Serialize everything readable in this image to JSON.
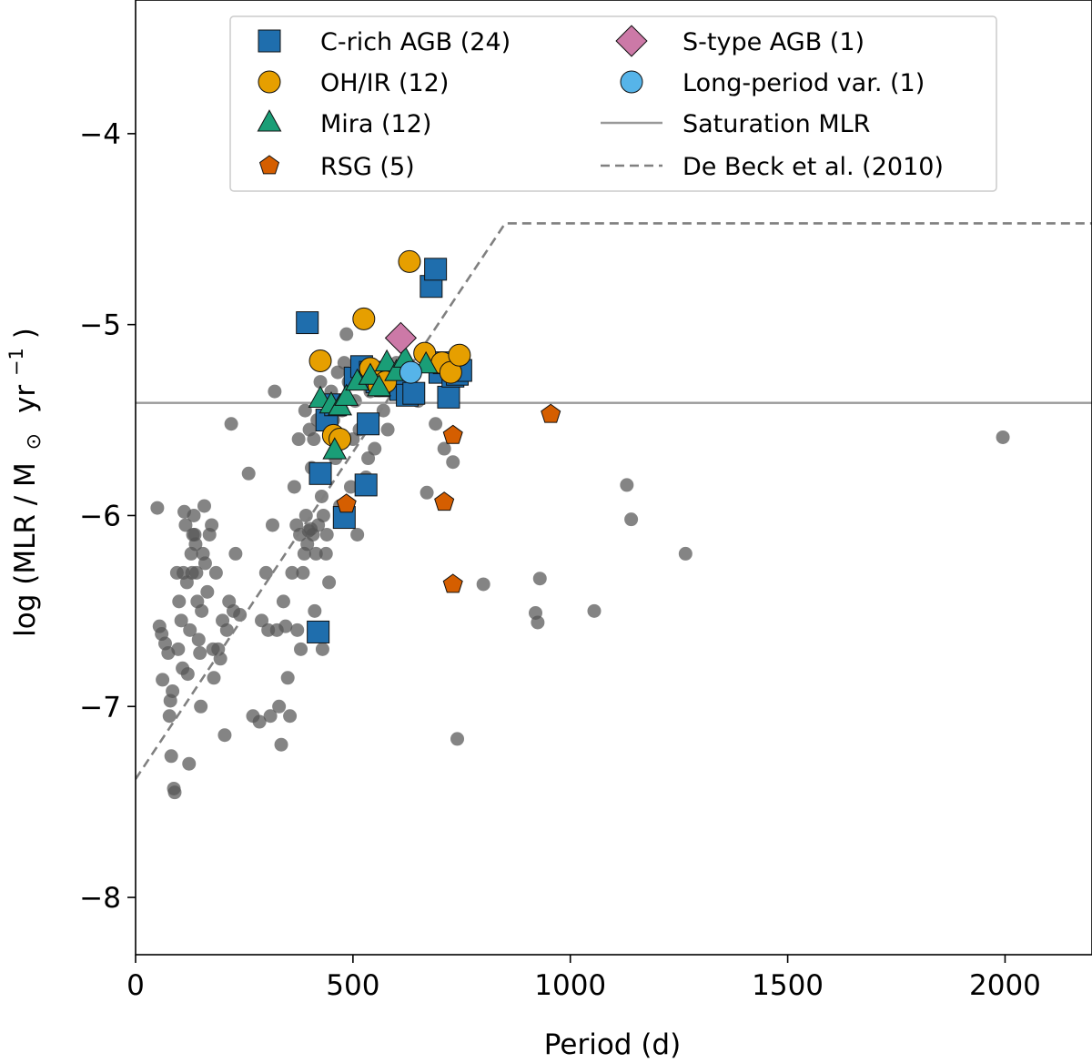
{
  "chart_data": {
    "type": "scatter",
    "title": "",
    "xlabel": "Period (d)",
    "ylabel_main": "log (MLR / M",
    "ylabel_sun": "⊙",
    "ylabel_unit": "yr",
    "ylabel_exp": "−1",
    "ylabel_close": ")",
    "xlim": [
      0,
      2200
    ],
    "ylim": [
      -8.3,
      -3.3
    ],
    "xticks": [
      0,
      500,
      1000,
      1500,
      2000
    ],
    "xtick_labels": [
      "0",
      "500",
      "1000",
      "1500",
      "2000"
    ],
    "yticks": [
      -4,
      -5,
      -6,
      -7,
      -8
    ],
    "ytick_labels": [
      "−4",
      "−5",
      "−6",
      "−7",
      "−8"
    ],
    "legend_position": "top",
    "saturation_mlr": {
      "label": "Saturation MLR",
      "y": -5.41,
      "color": "#999999"
    },
    "de_beck": {
      "label": "De Beck et al. (2010)",
      "color": "#808080",
      "points": [
        [
          0,
          -7.38
        ],
        [
          850,
          -4.47
        ],
        [
          2200,
          -4.47
        ]
      ]
    },
    "background_points": {
      "color": "#555555",
      "points": [
        [
          50,
          -5.96
        ],
        [
          55,
          -6.58
        ],
        [
          60,
          -6.62
        ],
        [
          62,
          -6.86
        ],
        [
          68,
          -6.67
        ],
        [
          75,
          -6.72
        ],
        [
          78,
          -7.05
        ],
        [
          80,
          -6.97
        ],
        [
          82,
          -7.26
        ],
        [
          85,
          -6.92
        ],
        [
          88,
          -7.43
        ],
        [
          90,
          -7.45
        ],
        [
          95,
          -6.3
        ],
        [
          98,
          -6.7
        ],
        [
          100,
          -6.45
        ],
        [
          105,
          -6.55
        ],
        [
          108,
          -6.8
        ],
        [
          110,
          -6.3
        ],
        [
          112,
          -5.98
        ],
        [
          115,
          -6.05
        ],
        [
          118,
          -6.35
        ],
        [
          120,
          -6.83
        ],
        [
          123,
          -7.3
        ],
        [
          125,
          -6.6
        ],
        [
          128,
          -6.2
        ],
        [
          130,
          -6.3
        ],
        [
          132,
          -6.1
        ],
        [
          134,
          -6.0
        ],
        [
          136,
          -6.1
        ],
        [
          138,
          -6.15
        ],
        [
          140,
          -6.3
        ],
        [
          142,
          -6.45
        ],
        [
          145,
          -6.65
        ],
        [
          148,
          -6.72
        ],
        [
          150,
          -7.0
        ],
        [
          152,
          -6.5
        ],
        [
          155,
          -6.2
        ],
        [
          158,
          -5.95
        ],
        [
          160,
          -6.25
        ],
        [
          165,
          -6.4
        ],
        [
          170,
          -6.1
        ],
        [
          175,
          -6.05
        ],
        [
          178,
          -6.7
        ],
        [
          180,
          -6.85
        ],
        [
          185,
          -6.3
        ],
        [
          190,
          -6.7
        ],
        [
          195,
          -6.75
        ],
        [
          200,
          -6.55
        ],
        [
          205,
          -7.15
        ],
        [
          210,
          -6.6
        ],
        [
          215,
          -6.45
        ],
        [
          220,
          -5.52
        ],
        [
          225,
          -6.5
        ],
        [
          230,
          -6.2
        ],
        [
          240,
          -6.52
        ],
        [
          260,
          -5.78
        ],
        [
          270,
          -7.05
        ],
        [
          285,
          -7.08
        ],
        [
          290,
          -6.55
        ],
        [
          300,
          -6.3
        ],
        [
          305,
          -6.6
        ],
        [
          310,
          -7.05
        ],
        [
          315,
          -6.05
        ],
        [
          320,
          -5.35
        ],
        [
          325,
          -6.6
        ],
        [
          330,
          -7.0
        ],
        [
          335,
          -7.2
        ],
        [
          340,
          -6.45
        ],
        [
          345,
          -6.58
        ],
        [
          350,
          -6.85
        ],
        [
          355,
          -7.05
        ],
        [
          360,
          -6.3
        ],
        [
          365,
          -5.85
        ],
        [
          370,
          -6.05
        ],
        [
          372,
          -6.6
        ],
        [
          375,
          -5.6
        ],
        [
          378,
          -6.1
        ],
        [
          380,
          -6.7
        ],
        [
          385,
          -6.3
        ],
        [
          388,
          -6.2
        ],
        [
          390,
          -5.45
        ],
        [
          392,
          -6.0
        ],
        [
          395,
          -6.15
        ],
        [
          398,
          -6.08
        ],
        [
          400,
          -5.55
        ],
        [
          403,
          -6.07
        ],
        [
          405,
          -5.75
        ],
        [
          408,
          -6.1
        ],
        [
          410,
          -5.6
        ],
        [
          412,
          -6.5
        ],
        [
          415,
          -6.2
        ],
        [
          418,
          -5.5
        ],
        [
          420,
          -6.05
        ],
        [
          425,
          -5.3
        ],
        [
          428,
          -5.9
        ],
        [
          430,
          -6.7
        ],
        [
          432,
          -6.0
        ],
        [
          435,
          -5.4
        ],
        [
          438,
          -6.2
        ],
        [
          440,
          -6.1
        ],
        [
          445,
          -6.35
        ],
        [
          450,
          -5.35
        ],
        [
          455,
          -5.5
        ],
        [
          460,
          -5.7
        ],
        [
          465,
          -5.25
        ],
        [
          470,
          -5.95
        ],
        [
          475,
          -5.45
        ],
        [
          478,
          -6.0
        ],
        [
          480,
          -5.2
        ],
        [
          485,
          -5.05
        ],
        [
          490,
          -5.3
        ],
        [
          495,
          -5.85
        ],
        [
          500,
          -5.6
        ],
        [
          505,
          -5.4
        ],
        [
          510,
          -6.1
        ],
        [
          515,
          -5.55
        ],
        [
          520,
          -5.25
        ],
        [
          530,
          -5.8
        ],
        [
          535,
          -5.7
        ],
        [
          540,
          -5.35
        ],
        [
          545,
          -5.5
        ],
        [
          550,
          -5.65
        ],
        [
          560,
          -5.3
        ],
        [
          570,
          -5.45
        ],
        [
          580,
          -5.55
        ],
        [
          600,
          -5.2
        ],
        [
          620,
          -5.3
        ],
        [
          650,
          -5.4
        ],
        [
          670,
          -5.88
        ],
        [
          690,
          -5.52
        ],
        [
          710,
          -5.65
        ],
        [
          730,
          -5.72
        ],
        [
          740,
          -7.17
        ],
        [
          800,
          -6.36
        ],
        [
          920,
          -6.51
        ],
        [
          925,
          -6.56
        ],
        [
          930,
          -6.33
        ],
        [
          1055,
          -6.5
        ],
        [
          1130,
          -5.84
        ],
        [
          1140,
          -6.02
        ],
        [
          1265,
          -6.2
        ],
        [
          1995,
          -5.59
        ]
      ]
    },
    "series": [
      {
        "name": "C-rich AGB",
        "label": "C-rich AGB (24)",
        "marker": "square",
        "color": "#1f6ead",
        "points": [
          [
            395,
            -4.99
          ],
          [
            420,
            -6.61
          ],
          [
            425,
            -5.78
          ],
          [
            440,
            -5.5
          ],
          [
            460,
            -5.42
          ],
          [
            480,
            -6.01
          ],
          [
            505,
            -5.28
          ],
          [
            520,
            -5.22
          ],
          [
            530,
            -5.84
          ],
          [
            535,
            -5.52
          ],
          [
            540,
            -5.25
          ],
          [
            555,
            -5.3
          ],
          [
            575,
            -5.32
          ],
          [
            610,
            -5.34
          ],
          [
            625,
            -5.37
          ],
          [
            640,
            -5.36
          ],
          [
            680,
            -4.8
          ],
          [
            690,
            -4.71
          ],
          [
            700,
            -5.25
          ],
          [
            710,
            -5.2
          ],
          [
            720,
            -5.38
          ],
          [
            730,
            -5.27
          ],
          [
            740,
            -5.26
          ],
          [
            748,
            -5.24
          ]
        ]
      },
      {
        "name": "OH/IR",
        "label": "OH/IR (12)",
        "marker": "circle",
        "color": "#e69f00",
        "points": [
          [
            425,
            -5.19
          ],
          [
            455,
            -5.58
          ],
          [
            470,
            -5.6
          ],
          [
            525,
            -4.97
          ],
          [
            540,
            -5.23
          ],
          [
            560,
            -5.32
          ],
          [
            575,
            -5.3
          ],
          [
            630,
            -4.67
          ],
          [
            665,
            -5.15
          ],
          [
            705,
            -5.2
          ],
          [
            725,
            -5.25
          ],
          [
            745,
            -5.16
          ]
        ]
      },
      {
        "name": "Mira",
        "label": "Mira (12)",
        "marker": "triangle",
        "color": "#1a9e77",
        "points": [
          [
            425,
            -5.39
          ],
          [
            450,
            -5.42
          ],
          [
            458,
            -5.66
          ],
          [
            470,
            -5.43
          ],
          [
            485,
            -5.38
          ],
          [
            510,
            -5.3
          ],
          [
            540,
            -5.27
          ],
          [
            560,
            -5.33
          ],
          [
            578,
            -5.2
          ],
          [
            600,
            -5.25
          ],
          [
            620,
            -5.18
          ],
          [
            668,
            -5.21
          ]
        ]
      },
      {
        "name": "RSG",
        "label": "RSG (5)",
        "marker": "pentagon",
        "color": "#d55e00",
        "points": [
          [
            485,
            -5.94
          ],
          [
            730,
            -5.58
          ],
          [
            710,
            -5.93
          ],
          [
            730,
            -6.36
          ],
          [
            955,
            -5.47
          ]
        ]
      },
      {
        "name": "S-type AGB",
        "label": "S-type AGB (1)",
        "marker": "diamond",
        "color": "#cc79a7",
        "points": [
          [
            610,
            -5.07
          ]
        ]
      },
      {
        "name": "Long-period var.",
        "label": "Long-period var. (1)",
        "marker": "circle",
        "color": "#56b4e9",
        "points": [
          [
            633,
            -5.25
          ]
        ]
      }
    ]
  }
}
